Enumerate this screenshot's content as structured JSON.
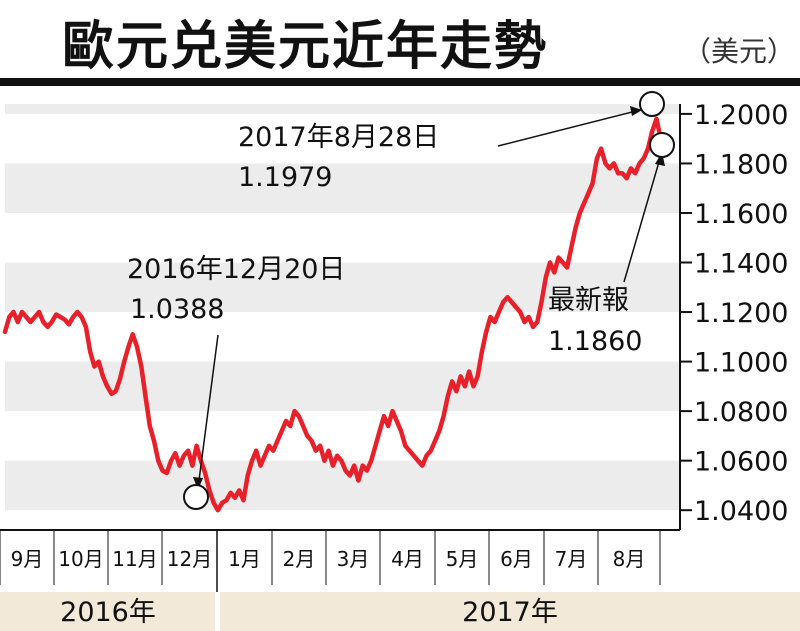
{
  "header": {
    "title": "歐元兑美元近年走勢",
    "unit": "（美元）"
  },
  "chart_data": {
    "type": "line",
    "title": "歐元兑美元近年走勢",
    "ylabel": "美元",
    "ylim": [
      1.032,
      1.204
    ],
    "yticks": [
      "1.2000",
      "1.1800",
      "1.1600",
      "1.1400",
      "1.1200",
      "1.1000",
      "1.0800",
      "1.0600",
      "1.0400"
    ],
    "ytick_values": [
      1.2,
      1.18,
      1.16,
      1.14,
      1.12,
      1.1,
      1.08,
      1.06,
      1.04
    ],
    "grid": "alternating-bands",
    "month_labels": [
      "9月",
      "10月",
      "11月",
      "12月",
      "1月",
      "2月",
      "3月",
      "4月",
      "5月",
      "6月",
      "7月",
      "8月"
    ],
    "year_labels": [
      "2016年",
      "2017年"
    ],
    "series": [
      {
        "color": "#e8202a",
        "values": [
          1.112,
          1.118,
          1.12,
          1.116,
          1.12,
          1.118,
          1.116,
          1.118,
          1.12,
          1.116,
          1.114,
          1.116,
          1.119,
          1.118,
          1.117,
          1.115,
          1.118,
          1.12,
          1.118,
          1.114,
          1.104,
          1.098,
          1.1,
          1.094,
          1.09,
          1.087,
          1.088,
          1.093,
          1.1,
          1.106,
          1.111,
          1.106,
          1.098,
          1.086,
          1.074,
          1.068,
          1.06,
          1.056,
          1.055,
          1.06,
          1.063,
          1.058,
          1.062,
          1.064,
          1.058,
          1.066,
          1.06,
          1.055,
          1.048,
          1.043,
          1.04,
          1.043,
          1.044,
          1.047,
          1.045,
          1.048,
          1.044,
          1.054,
          1.06,
          1.064,
          1.058,
          1.062,
          1.066,
          1.064,
          1.068,
          1.072,
          1.076,
          1.074,
          1.08,
          1.078,
          1.074,
          1.07,
          1.068,
          1.064,
          1.066,
          1.06,
          1.064,
          1.058,
          1.062,
          1.06,
          1.056,
          1.054,
          1.058,
          1.052,
          1.058,
          1.056,
          1.06,
          1.066,
          1.072,
          1.078,
          1.074,
          1.08,
          1.076,
          1.072,
          1.066,
          1.064,
          1.062,
          1.06,
          1.058,
          1.062,
          1.064,
          1.068,
          1.072,
          1.078,
          1.086,
          1.092,
          1.088,
          1.094,
          1.09,
          1.096,
          1.09,
          1.094,
          1.104,
          1.112,
          1.118,
          1.116,
          1.12,
          1.124,
          1.126,
          1.124,
          1.122,
          1.12,
          1.116,
          1.118,
          1.114,
          1.116,
          1.124,
          1.134,
          1.14,
          1.136,
          1.142,
          1.14,
          1.138,
          1.146,
          1.154,
          1.16,
          1.164,
          1.168,
          1.172,
          1.182,
          1.186,
          1.18,
          1.178,
          1.18,
          1.176,
          1.176,
          1.174,
          1.178,
          1.176,
          1.18,
          1.182,
          1.186,
          1.193,
          1.198,
          1.19,
          1.186
        ]
      }
    ],
    "annotations": [
      {
        "date": "2016年12月20日",
        "value": "1.0388"
      },
      {
        "date": "2017年8月28日",
        "value": "1.1979"
      },
      {
        "date": "最新報",
        "value": "1.1860"
      }
    ]
  }
}
